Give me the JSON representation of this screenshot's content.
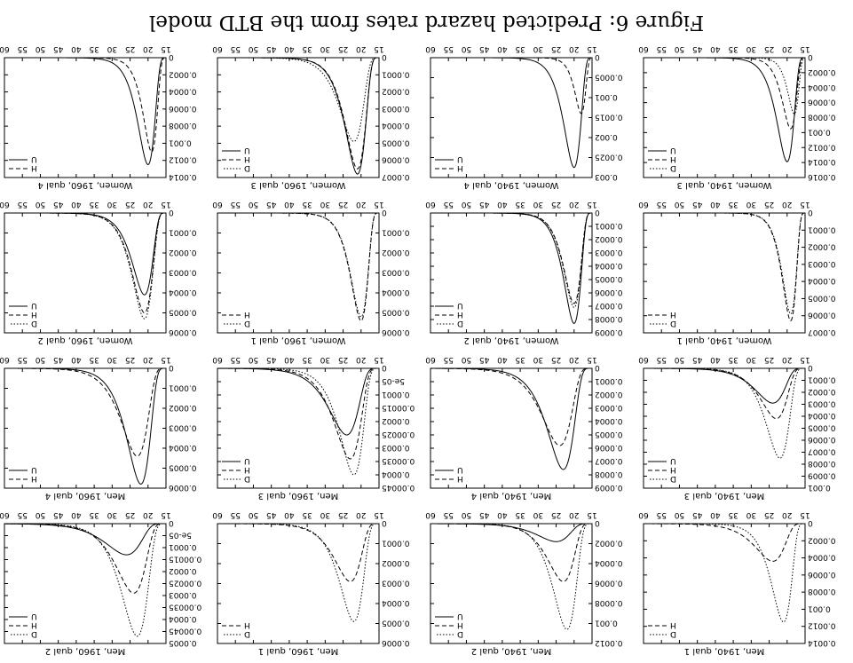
{
  "caption": "Figure 6: Predicted hazard rates from the BTD model",
  "chart_data": [
    {
      "type": "line",
      "title": "Men, 1940, qual 1",
      "xlim": [
        15,
        60
      ],
      "ylim": [
        0,
        0.0014
      ],
      "xticks": [
        "15",
        "20",
        "25",
        "30",
        "35",
        "40",
        "45",
        "50",
        "55",
        "60"
      ],
      "yticks": [
        "0",
        "0.0002",
        "0.0004",
        "0.0006",
        "0.0008",
        "0.001",
        "0.0012",
        "0.0014"
      ],
      "series": [
        {
          "name": "D",
          "style": "dotted",
          "peak_age": 21,
          "peak": 0.00115
        },
        {
          "name": "H",
          "style": "dashed",
          "peak_age": 24,
          "peak": 0.00044
        }
      ]
    },
    {
      "type": "line",
      "title": "Men, 1940, qual 2",
      "xlim": [
        15,
        60
      ],
      "ylim": [
        0,
        0.0012
      ],
      "xticks": [
        "15",
        "20",
        "25",
        "30",
        "35",
        "40",
        "45",
        "50",
        "55",
        "60"
      ],
      "yticks": [
        "0",
        "0.0002",
        "0.0004",
        "0.0006",
        "0.0008",
        "0.001",
        "0.0012"
      ],
      "series": [
        {
          "name": "D",
          "style": "dotted",
          "peak_age": 22,
          "peak": 0.00106
        },
        {
          "name": "H",
          "style": "dashed",
          "peak_age": 23,
          "peak": 0.00058
        },
        {
          "name": "U",
          "style": "solid",
          "peak_age": 25,
          "peak": 0.00018
        }
      ]
    },
    {
      "type": "line",
      "title": "Men, 1960, qual 1",
      "xlim": [
        15,
        60
      ],
      "ylim": [
        0,
        0.0006
      ],
      "xticks": [
        "15",
        "20",
        "25",
        "30",
        "35",
        "40",
        "45",
        "50",
        "55",
        "60"
      ],
      "yticks": [
        "0",
        "0.0001",
        "0.0002",
        "0.0003",
        "0.0004",
        "0.0005",
        "0.0006"
      ],
      "series": [
        {
          "name": "D",
          "style": "dotted",
          "peak_age": 22,
          "peak": 0.00049
        },
        {
          "name": "H",
          "style": "dashed",
          "peak_age": 23,
          "peak": 0.00029
        }
      ]
    },
    {
      "type": "line",
      "title": "Men, 1960, qual 2",
      "xlim": [
        15,
        60
      ],
      "ylim": [
        0,
        0.0005
      ],
      "xticks": [
        "15",
        "20",
        "25",
        "30",
        "35",
        "40",
        "45",
        "50",
        "55",
        "60"
      ],
      "yticks": [
        "0",
        "5e-05",
        "0.0001",
        "0.00015",
        "0.0002",
        "0.00025",
        "0.0003",
        "0.00035",
        "0.0004",
        "0.00045",
        "0.0005"
      ],
      "series": [
        {
          "name": "D",
          "style": "dotted",
          "peak_age": 23,
          "peak": 0.00047
        },
        {
          "name": "H",
          "style": "dashed",
          "peak_age": 24,
          "peak": 0.00029
        },
        {
          "name": "U",
          "style": "solid",
          "peak_age": 26,
          "peak": 0.00013
        }
      ]
    },
    {
      "type": "line",
      "title": "Men, 1940, qual 3",
      "xlim": [
        15,
        60
      ],
      "ylim": [
        0,
        0.001
      ],
      "xticks": [
        "15",
        "20",
        "25",
        "30",
        "35",
        "40",
        "45",
        "50",
        "55",
        "60"
      ],
      "yticks": [
        "0",
        "0.0001",
        "0.0002",
        "0.0003",
        "0.0004",
        "0.0005",
        "0.0006",
        "0.0007",
        "0.0008",
        "0.0009",
        "0.001"
      ],
      "series": [
        {
          "name": "D",
          "style": "dotted",
          "peak_age": 22,
          "peak": 0.00075
        },
        {
          "name": "H",
          "style": "dashed",
          "peak_age": 23,
          "peak": 0.00042
        },
        {
          "name": "U",
          "style": "solid",
          "peak_age": 24,
          "peak": 0.00029
        }
      ]
    },
    {
      "type": "line",
      "title": "Men, 1940, qual 4",
      "xlim": [
        15,
        60
      ],
      "ylim": [
        0,
        0.0009
      ],
      "xticks": [
        "15",
        "20",
        "25",
        "30",
        "35",
        "40",
        "45",
        "50",
        "55",
        "60"
      ],
      "yticks": [
        "0",
        "0.0001",
        "0.0002",
        "0.0003",
        "0.0004",
        "0.0005",
        "0.0006",
        "0.0007",
        "0.0008",
        "0.0009"
      ],
      "series": [
        {
          "name": "H",
          "style": "dashed",
          "peak_age": 24,
          "peak": 0.00058
        },
        {
          "name": "U",
          "style": "solid",
          "peak_age": 23,
          "peak": 0.00076
        }
      ]
    },
    {
      "type": "line",
      "title": "Men, 1960, qual 3",
      "xlim": [
        15,
        60
      ],
      "ylim": [
        0,
        0.00045
      ],
      "xticks": [
        "15",
        "20",
        "25",
        "30",
        "35",
        "40",
        "45",
        "50",
        "55",
        "60"
      ],
      "yticks": [
        "0",
        "5e-05",
        "0.0001",
        "0.00015",
        "0.0002",
        "0.00025",
        "0.0003",
        "0.00035",
        "0.0004",
        "0.00045"
      ],
      "series": [
        {
          "name": "D",
          "style": "dotted",
          "peak_age": 22,
          "peak": 0.0004
        },
        {
          "name": "H",
          "style": "dashed",
          "peak_age": 23,
          "peak": 0.00034
        },
        {
          "name": "U",
          "style": "solid",
          "peak_age": 24,
          "peak": 0.00025
        }
      ]
    },
    {
      "type": "line",
      "title": "Men, 1960, qual 4",
      "xlim": [
        15,
        60
      ],
      "ylim": [
        0,
        0.0006
      ],
      "xticks": [
        "15",
        "20",
        "25",
        "30",
        "35",
        "40",
        "45",
        "50",
        "55",
        "60"
      ],
      "yticks": [
        "0",
        "0.0001",
        "0.0002",
        "0.0003",
        "0.0004",
        "0.0005",
        "0.0006"
      ],
      "series": [
        {
          "name": "H",
          "style": "dashed",
          "peak_age": 23,
          "peak": 0.00044
        },
        {
          "name": "U",
          "style": "solid",
          "peak_age": 22,
          "peak": 0.00058
        }
      ]
    },
    {
      "type": "line",
      "title": "Women, 1940, qual 1",
      "xlim": [
        15,
        60
      ],
      "ylim": [
        0,
        0.0007
      ],
      "xticks": [
        "15",
        "20",
        "25",
        "30",
        "35",
        "40",
        "45",
        "50",
        "55",
        "60"
      ],
      "yticks": [
        "0",
        "0.0001",
        "0.0002",
        "0.0003",
        "0.0004",
        "0.0005",
        "0.0006",
        "0.0007"
      ],
      "series": [
        {
          "name": "D",
          "style": "dotted",
          "peak_age": 19,
          "peak": 0.00059
        },
        {
          "name": "H",
          "style": "dashed",
          "peak_age": 19,
          "peak": 0.00063
        }
      ]
    },
    {
      "type": "line",
      "title": "Women, 1940, qual 2",
      "xlim": [
        15,
        60
      ],
      "ylim": [
        0,
        0.0009
      ],
      "xticks": [
        "15",
        "20",
        "25",
        "30",
        "35",
        "40",
        "45",
        "50",
        "55",
        "60"
      ],
      "yticks": [
        "0",
        "0.0001",
        "0.0002",
        "0.0003",
        "0.0004",
        "0.0005",
        "0.0006",
        "0.0007",
        "0.0008",
        "0.0009"
      ],
      "series": [
        {
          "name": "D",
          "style": "dotted",
          "peak_age": 20,
          "peak": 0.00071
        },
        {
          "name": "H",
          "style": "dashed",
          "peak_age": 20,
          "peak": 0.00068
        },
        {
          "name": "U",
          "style": "solid",
          "peak_age": 20,
          "peak": 0.00083
        }
      ]
    },
    {
      "type": "line",
      "title": "Women, 1960, qual 1",
      "xlim": [
        15,
        60
      ],
      "ylim": [
        0,
        0.0006
      ],
      "xticks": [
        "15",
        "20",
        "25",
        "30",
        "35",
        "40",
        "45",
        "50",
        "55",
        "60"
      ],
      "yticks": [
        "0",
        "0.0001",
        "0.0002",
        "0.0003",
        "0.0004",
        "0.0005",
        "0.0006"
      ],
      "series": [
        {
          "name": "D",
          "style": "dotted",
          "peak_age": 20,
          "peak": 0.00052
        },
        {
          "name": "H",
          "style": "dashed",
          "peak_age": 20,
          "peak": 0.00054
        }
      ]
    },
    {
      "type": "line",
      "title": "Women, 1960, qual 2",
      "xlim": [
        15,
        60
      ],
      "ylim": [
        0,
        0.0006
      ],
      "xticks": [
        "15",
        "20",
        "25",
        "30",
        "35",
        "40",
        "45",
        "50",
        "55",
        "60"
      ],
      "yticks": [
        "0",
        "0.0001",
        "0.0002",
        "0.0003",
        "0.0004",
        "0.0005",
        "0.0006"
      ],
      "series": [
        {
          "name": "D",
          "style": "dotted",
          "peak_age": 21,
          "peak": 0.00053
        },
        {
          "name": "H",
          "style": "dashed",
          "peak_age": 21,
          "peak": 0.0005
        },
        {
          "name": "U",
          "style": "solid",
          "peak_age": 21,
          "peak": 0.00041
        }
      ]
    },
    {
      "type": "line",
      "title": "Women, 1940, qual 3",
      "xlim": [
        15,
        60
      ],
      "ylim": [
        0,
        0.0016
      ],
      "xticks": [
        "15",
        "20",
        "25",
        "30",
        "35",
        "40",
        "45",
        "50",
        "55",
        "60"
      ],
      "yticks": [
        "0",
        "0.0002",
        "0.0004",
        "0.0006",
        "0.0008",
        "0.001",
        "0.0012",
        "0.0014",
        "0.0016"
      ],
      "series": [
        {
          "name": "D",
          "style": "dotted",
          "peak_age": 18,
          "peak": 0.00075
        },
        {
          "name": "H",
          "style": "dashed",
          "peak_age": 19,
          "peak": 0.00095
        },
        {
          "name": "U",
          "style": "solid",
          "peak_age": 20,
          "peak": 0.00139
        }
      ]
    },
    {
      "type": "line",
      "title": "Women, 1940, qual 4",
      "xlim": [
        15,
        60
      ],
      "ylim": [
        0,
        0.003
      ],
      "xticks": [
        "15",
        "20",
        "25",
        "30",
        "35",
        "40",
        "45",
        "50",
        "55",
        "60"
      ],
      "yticks": [
        "0",
        "0.0005",
        "0.001",
        "0.0015",
        "0.002",
        "0.0025",
        "0.003"
      ],
      "series": [
        {
          "name": "H",
          "style": "dashed",
          "peak_age": 18,
          "peak": 0.0014
        },
        {
          "name": "U",
          "style": "solid",
          "peak_age": 20,
          "peak": 0.00275
        }
      ]
    },
    {
      "type": "line",
      "title": "Women, 1960, qual 3",
      "xlim": [
        15,
        60
      ],
      "ylim": [
        0,
        0.0007
      ],
      "xticks": [
        "15",
        "20",
        "25",
        "30",
        "35",
        "40",
        "45",
        "50",
        "55",
        "60"
      ],
      "yticks": [
        "0",
        "0.0001",
        "0.0002",
        "0.0003",
        "0.0004",
        "0.0005",
        "0.0006",
        "0.0007"
      ],
      "series": [
        {
          "name": "D",
          "style": "dotted",
          "peak_age": 22,
          "peak": 0.00049
        },
        {
          "name": "H",
          "style": "dashed",
          "peak_age": 21,
          "peak": 0.00065
        },
        {
          "name": "U",
          "style": "solid",
          "peak_age": 21,
          "peak": 0.00068
        }
      ]
    },
    {
      "type": "line",
      "title": "Women, 1960, qual 4",
      "xlim": [
        15,
        60
      ],
      "ylim": [
        0,
        0.0014
      ],
      "xticks": [
        "15",
        "20",
        "25",
        "30",
        "35",
        "40",
        "45",
        "50",
        "55",
        "60"
      ],
      "yticks": [
        "0",
        "0.0002",
        "0.0004",
        "0.0006",
        "0.0008",
        "0.001",
        "0.0012",
        "0.0014"
      ],
      "series": [
        {
          "name": "H",
          "style": "dashed",
          "peak_age": 19,
          "peak": 0.0011
        },
        {
          "name": "U",
          "style": "solid",
          "peak_age": 20,
          "peak": 0.00125
        }
      ]
    }
  ]
}
